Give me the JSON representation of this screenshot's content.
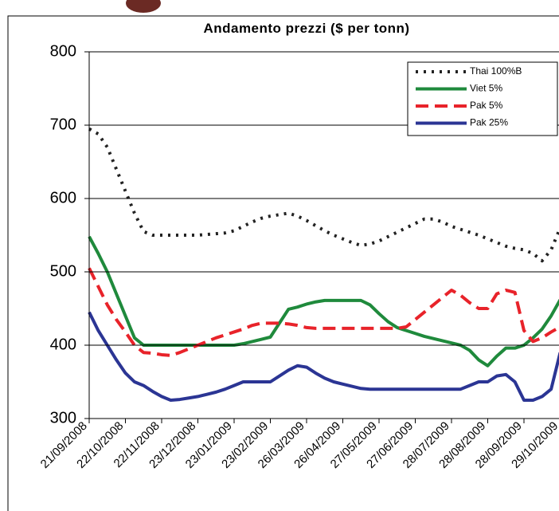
{
  "chart_data": {
    "type": "line",
    "title": "Andamento prezzi ($ per tonn)",
    "categories": [
      "21/09/2008",
      null,
      null,
      null,
      "22/10/2008",
      null,
      null,
      null,
      "22/11/2008",
      null,
      null,
      null,
      "23/12/2008",
      null,
      null,
      null,
      "23/01/2009",
      null,
      null,
      null,
      "23/02/2009",
      null,
      null,
      null,
      "26/03/2009",
      null,
      null,
      null,
      "26/04/2009",
      null,
      null,
      null,
      "27/05/2009",
      null,
      null,
      null,
      "27/06/2009",
      null,
      null,
      null,
      "28/07/2009",
      null,
      null,
      null,
      "28/08/2009",
      null,
      null,
      null,
      "28/09/2009",
      null,
      null,
      null,
      "29/10/2009"
    ],
    "series": [
      {
        "name": "Thai 100%B",
        "color": "#222222",
        "dash": "dot",
        "values": [
          695,
          688,
          670,
          640,
          610,
          580,
          555,
          550,
          550,
          550,
          550,
          550,
          550,
          551,
          552,
          553,
          556,
          562,
          568,
          573,
          576,
          578,
          580,
          576,
          570,
          563,
          556,
          550,
          545,
          540,
          536,
          538,
          542,
          548,
          554,
          560,
          566,
          572,
          572,
          568,
          562,
          558,
          554,
          550,
          545,
          540,
          535,
          532,
          530,
          525,
          515,
          530,
          560
        ]
      },
      {
        "name": "Viet 5%",
        "color": "#1f8a3c",
        "dash": "solid",
        "values": [
          548,
          525,
          500,
          470,
          440,
          410,
          400,
          400,
          400,
          400,
          400,
          400,
          400,
          400,
          400,
          400,
          400,
          402,
          405,
          408,
          411,
          430,
          449,
          452,
          456,
          459,
          461,
          461,
          461,
          461,
          461,
          455,
          443,
          432,
          424,
          420,
          416,
          412,
          409,
          406,
          403,
          400,
          393,
          380,
          372,
          385,
          396,
          396,
          400,
          410,
          422,
          440,
          462
        ]
      },
      {
        "name": "Pak 5%",
        "color": "#e8232a",
        "dash": "dash",
        "values": [
          505,
          480,
          455,
          435,
          418,
          400,
          390,
          389,
          387,
          386,
          390,
          395,
          400,
          405,
          410,
          414,
          418,
          422,
          427,
          430,
          430,
          430,
          429,
          427,
          424,
          423,
          423,
          423,
          423,
          423,
          423,
          423,
          423,
          423,
          423,
          425,
          435,
          445,
          455,
          465,
          475,
          468,
          458,
          450,
          450,
          470,
          475,
          472,
          420,
          405,
          410,
          418,
          425
        ]
      },
      {
        "name": "Pak 25%",
        "color": "#2b3594",
        "dash": "solid",
        "values": [
          445,
          420,
          400,
          380,
          362,
          350,
          345,
          337,
          330,
          325,
          326,
          328,
          330,
          333,
          336,
          340,
          345,
          350,
          350,
          350,
          350,
          358,
          366,
          372,
          370,
          362,
          355,
          350,
          347,
          344,
          341,
          340,
          340,
          340,
          340,
          340,
          340,
          340,
          340,
          340,
          340,
          340,
          345,
          350,
          350,
          358,
          360,
          350,
          325,
          325,
          330,
          340,
          390
        ]
      }
    ],
    "ylim": [
      300,
      800
    ],
    "yticks": [
      300,
      400,
      500,
      600,
      700,
      800
    ],
    "grid": true,
    "legend": "top-right"
  }
}
